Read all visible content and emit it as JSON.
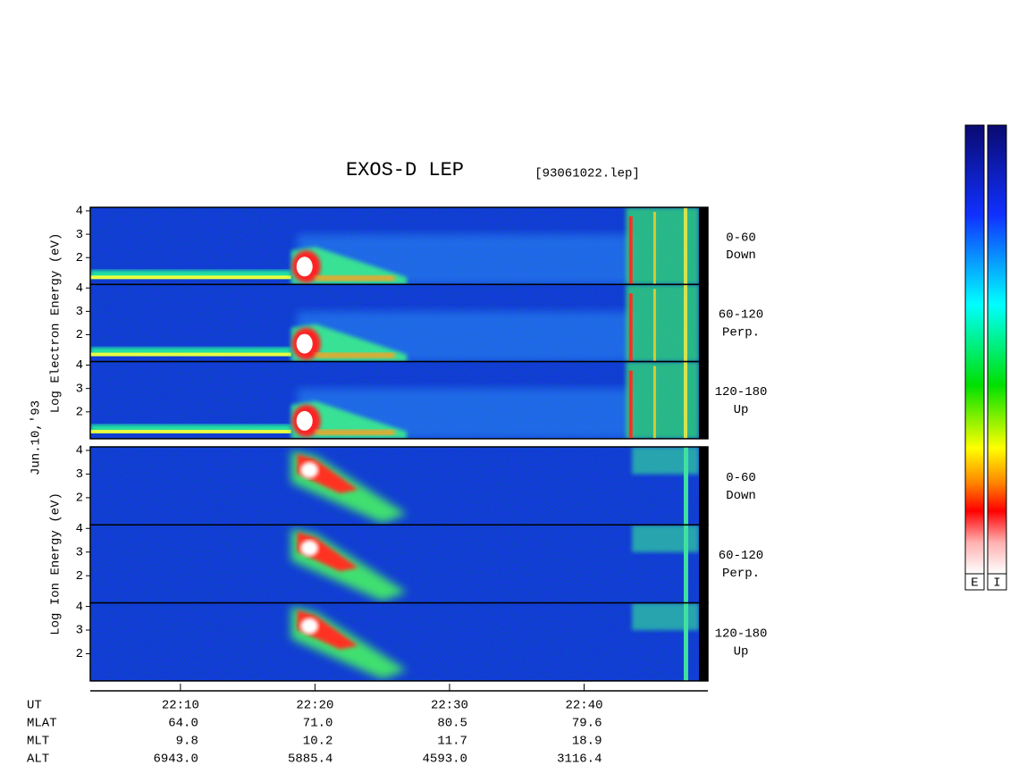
{
  "chart_data": {
    "type": "spectrogram",
    "title": "EXOS-D LEP",
    "subtitle": "[93061022.lep]",
    "date_label": "Jun.10,'93",
    "groups": [
      {
        "ylabel": "Log Electron Energy (eV)",
        "panels": [
          {
            "label": "0-60",
            "direction": "Down"
          },
          {
            "label": "60-120",
            "direction": "Perp."
          },
          {
            "label": "120-180",
            "direction": "Up"
          }
        ]
      },
      {
        "ylabel": "Log Ion Energy (eV)",
        "panels": [
          {
            "label": "0-60",
            "direction": "Down"
          },
          {
            "label": "60-120",
            "direction": "Perp."
          },
          {
            "label": "120-180",
            "direction": "Up"
          }
        ]
      }
    ],
    "ylim": [
      0.85,
      4.15
    ],
    "yticks": [
      2,
      3,
      4
    ],
    "xlim": [
      1323.3,
      1369.2
    ],
    "xticks": [
      {
        "value": 1330,
        "label": "22:10"
      },
      {
        "value": 1340,
        "label": "22:20"
      },
      {
        "value": 1350,
        "label": "22:30"
      },
      {
        "value": 1360,
        "label": "22:40"
      }
    ],
    "orbit_rows": [
      {
        "name": "UT"
      },
      {
        "name": "MLAT",
        "values": [
          "64.0",
          "71.0",
          "80.5",
          "79.6"
        ]
      },
      {
        "name": "MLT",
        "values": [
          "9.8",
          "10.2",
          "11.7",
          "18.9"
        ]
      },
      {
        "name": "ALT",
        "values": [
          "6943.0",
          "5885.4",
          "4593.0",
          "3116.4"
        ]
      }
    ],
    "colorbars": [
      "E",
      "I"
    ]
  }
}
